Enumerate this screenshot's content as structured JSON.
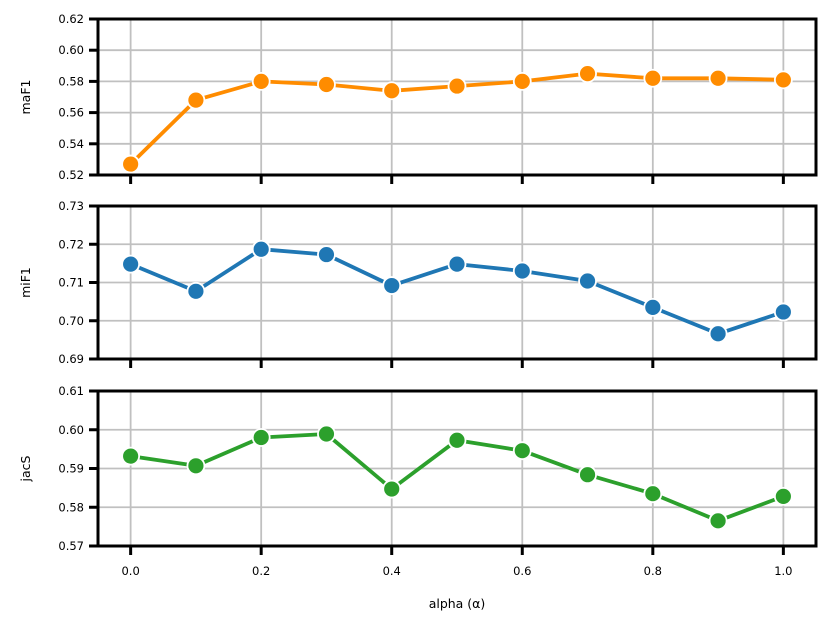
{
  "chart_data": {
    "type": "line",
    "xlabel": "alpha (α)",
    "x": [
      0.0,
      0.1,
      0.2,
      0.3,
      0.4,
      0.5,
      0.6,
      0.7,
      0.8,
      0.9,
      1.0
    ],
    "xticks": [
      "0.0",
      "0.2",
      "0.4",
      "0.6",
      "0.8",
      "1.0"
    ],
    "xlim": [
      -0.05,
      1.05
    ],
    "grid": true,
    "panels": [
      {
        "ylabel": "maF1",
        "color": "#ff8c00",
        "ylim": [
          0.52,
          0.62
        ],
        "yticks": [
          "0.52",
          "0.54",
          "0.56",
          "0.58",
          "0.60",
          "0.62"
        ],
        "values": [
          0.527,
          0.568,
          0.58,
          0.578,
          0.574,
          0.577,
          0.58,
          0.585,
          0.582,
          0.582,
          0.581
        ]
      },
      {
        "ylabel": "miF1",
        "color": "#1f77b4",
        "ylim": [
          0.69,
          0.73
        ],
        "yticks": [
          "0.69",
          "0.70",
          "0.71",
          "0.72",
          "0.73"
        ],
        "values": [
          0.7148,
          0.7077,
          0.7187,
          0.7173,
          0.7092,
          0.7148,
          0.713,
          0.7104,
          0.7035,
          0.6966,
          0.7023
        ]
      },
      {
        "ylabel": "jacS",
        "color": "#2ca02c",
        "ylim": [
          0.57,
          0.61
        ],
        "yticks": [
          "0.57",
          "0.58",
          "0.59",
          "0.60",
          "0.61"
        ],
        "values": [
          0.5932,
          0.5907,
          0.598,
          0.5989,
          0.5847,
          0.5973,
          0.5946,
          0.5884,
          0.5835,
          0.5765,
          0.5828
        ]
      }
    ]
  }
}
